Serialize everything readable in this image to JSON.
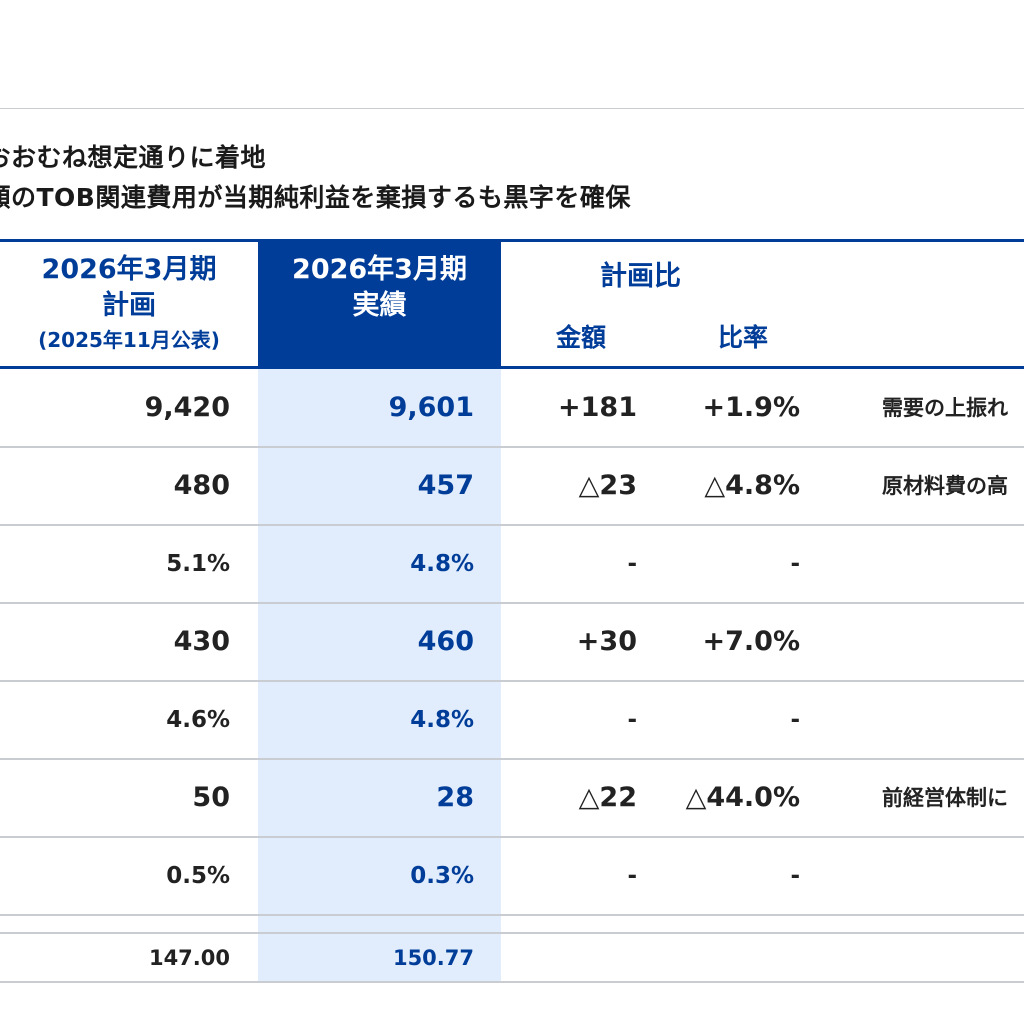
{
  "headline": {
    "line1": "におおむね想定通りに着地",
    "line2": "多額のTOB関連費用が当期純利益を棄損するも黒字を確保"
  },
  "table": {
    "headers": {
      "plan_line1": "2026年3月期",
      "plan_line2": "計画",
      "plan_line3": "(2025年11月公表)",
      "actual_line1": "2026年3月期",
      "actual_line2": "実績",
      "compare": "計画比",
      "amount": "金額",
      "rate": "比率"
    },
    "rows": [
      {
        "plan": "9,420",
        "actual": "9,601",
        "amount": "+181",
        "rate": "+1.9%",
        "note": "需要の上振れ"
      },
      {
        "plan": "480",
        "actual": "457",
        "amount": "△23",
        "rate": "△4.8%",
        "note": "原材料費の高"
      },
      {
        "plan": "5.1%",
        "actual": "4.8%",
        "amount": "-",
        "rate": "-",
        "note": ""
      },
      {
        "plan": "430",
        "actual": "460",
        "amount": "+30",
        "rate": "+7.0%",
        "note": ""
      },
      {
        "plan": "4.6%",
        "actual": "4.8%",
        "amount": "-",
        "rate": "-",
        "note": ""
      },
      {
        "plan": "50",
        "actual": "28",
        "amount": "△22",
        "rate": "△44.0%",
        "note": "前経営体制に"
      },
      {
        "plan": "0.5%",
        "actual": "0.3%",
        "amount": "-",
        "rate": "-",
        "note": ""
      },
      {
        "plan": "147.00",
        "actual": "150.77",
        "amount": "",
        "rate": "",
        "note": ""
      }
    ]
  },
  "colors": {
    "brand_blue": "#003d99",
    "highlight_band": "#e1edfc",
    "divider": "#c9cdd2"
  }
}
